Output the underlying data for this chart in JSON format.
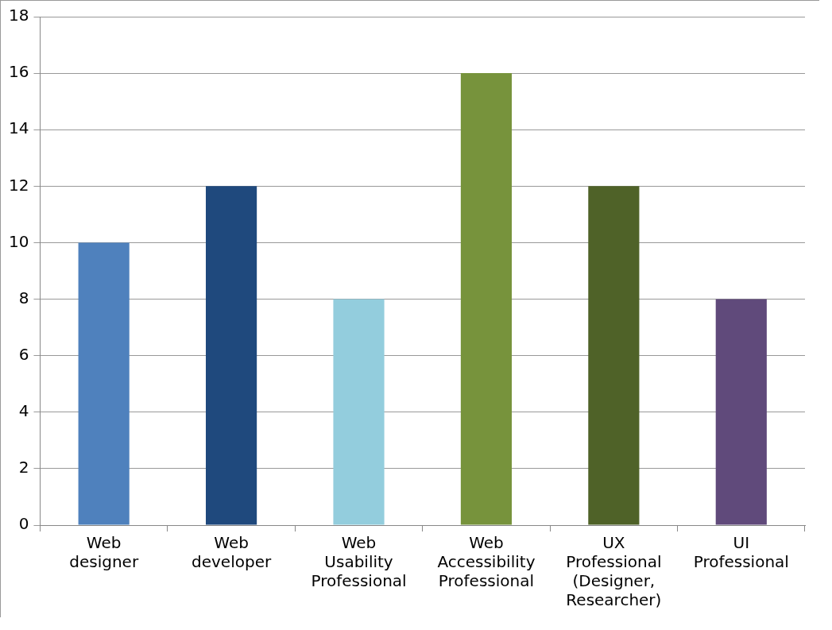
{
  "chart_data": {
    "type": "bar",
    "categories": [
      "Web designer",
      "Web developer",
      "Web Usability Professional",
      "Web Accessibility Professional",
      "UX Professional (Designer, Researcher)",
      "UI Professional"
    ],
    "values": [
      10,
      12,
      8,
      16,
      12,
      8
    ],
    "colors": [
      "#4f81bd",
      "#1f497d",
      "#93cddd",
      "#77933c",
      "#4f6228",
      "#604a7b"
    ],
    "ylim": [
      0,
      18
    ],
    "yticks": [
      0,
      2,
      4,
      6,
      8,
      10,
      12,
      14,
      16,
      18
    ],
    "grid": "y",
    "legend": false
  }
}
